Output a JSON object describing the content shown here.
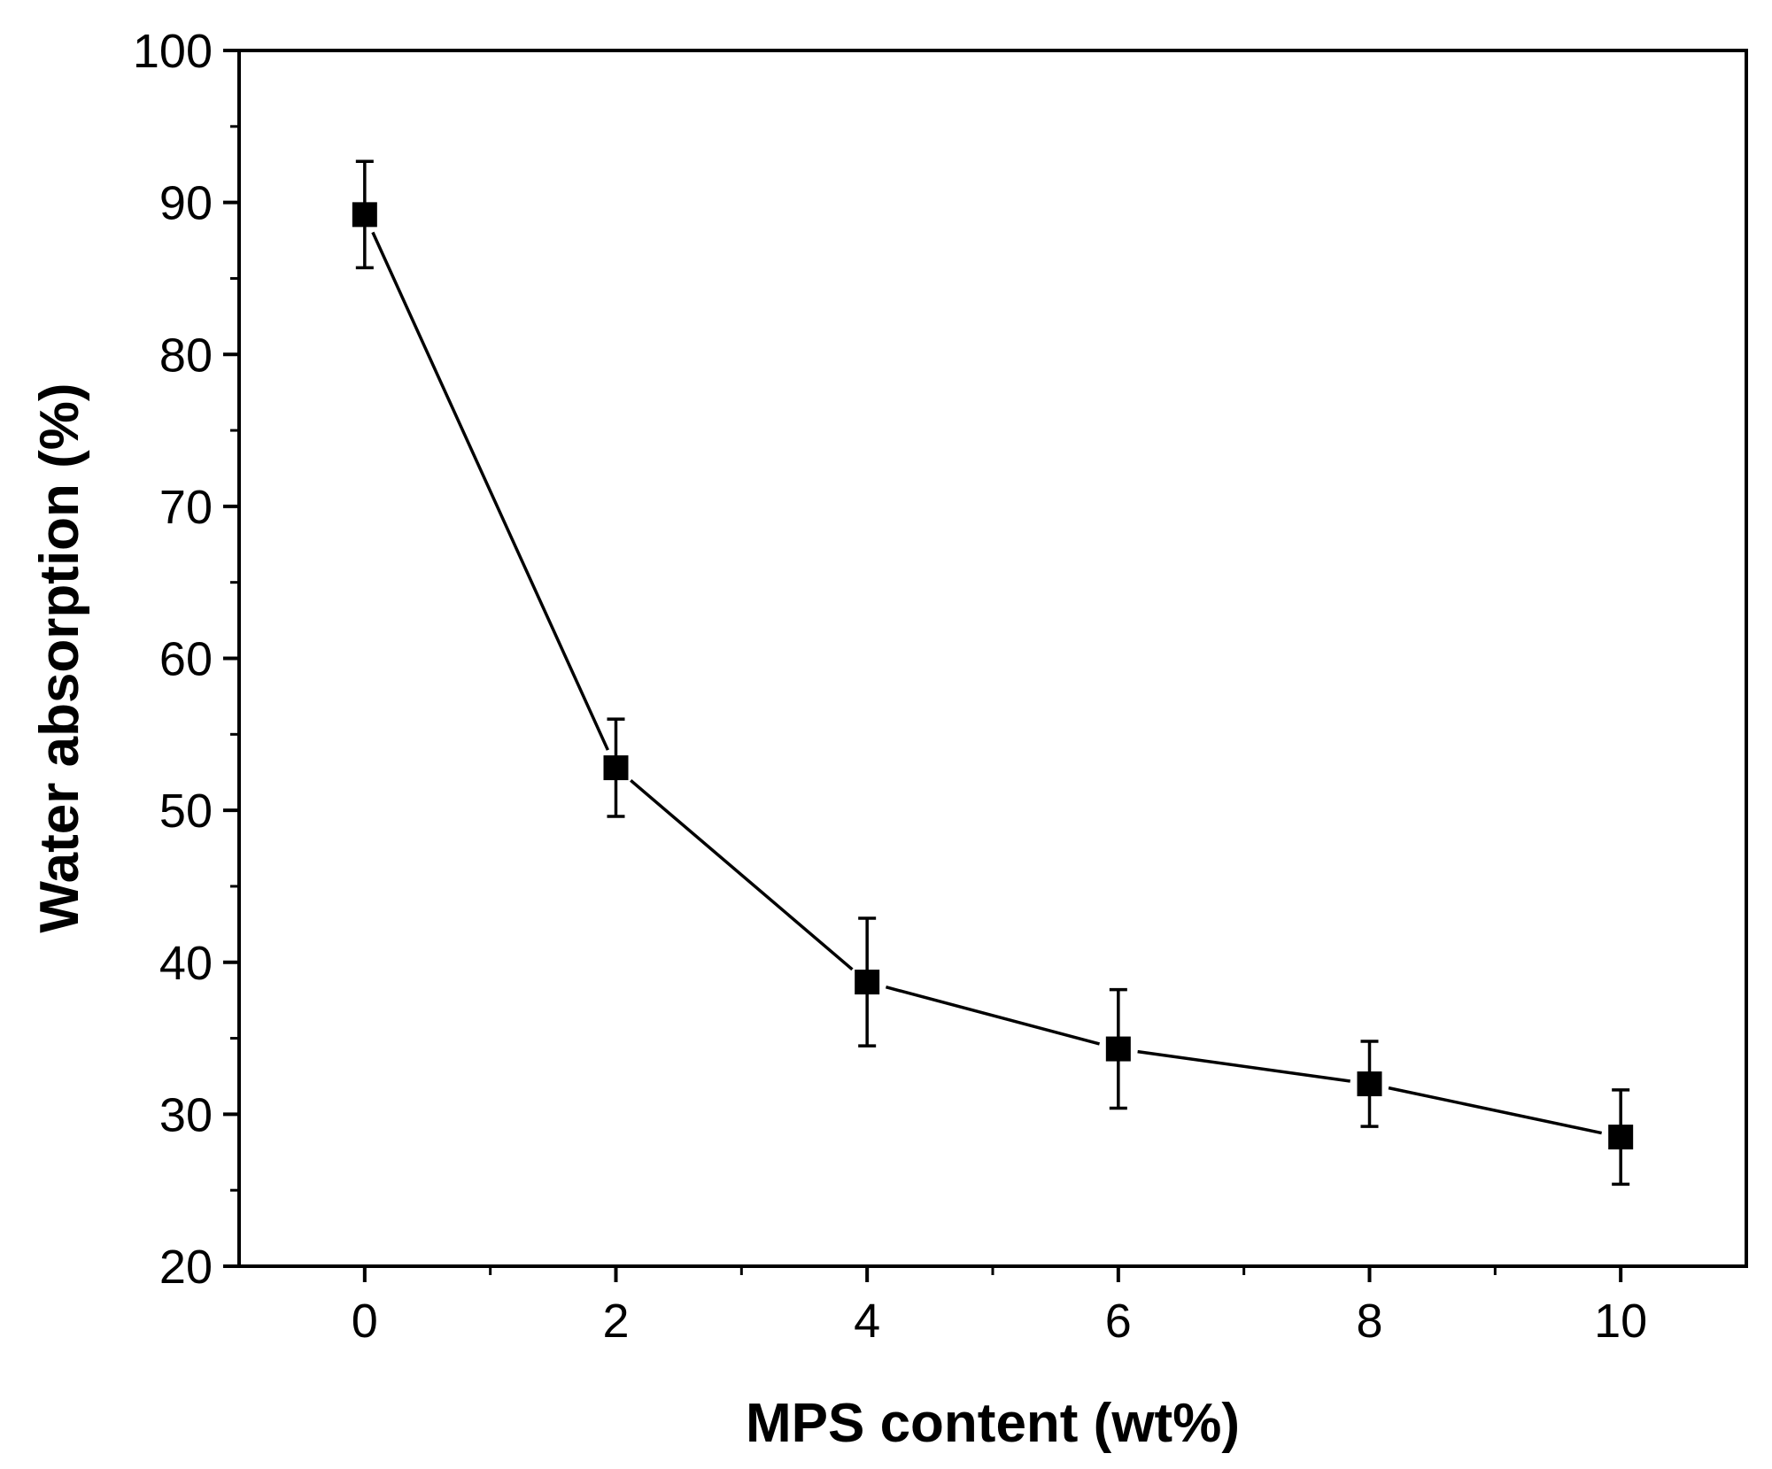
{
  "chart_data": {
    "type": "line",
    "title": "",
    "xlabel": "MPS content (wt%)",
    "ylabel": "Water absorption (%)",
    "xlim": [
      -1,
      11
    ],
    "ylim": [
      20,
      100
    ],
    "xticks": [
      0,
      2,
      4,
      6,
      8,
      10
    ],
    "yticks": [
      20,
      30,
      40,
      50,
      60,
      70,
      80,
      90,
      100
    ],
    "grid": false,
    "series": [
      {
        "name": "Water absorption",
        "marker": "square",
        "color": "#000000",
        "x": [
          0,
          2,
          4,
          6,
          8,
          10
        ],
        "y": [
          89.2,
          52.8,
          38.7,
          34.3,
          32.0,
          28.5
        ],
        "error": [
          3.5,
          3.2,
          4.2,
          3.9,
          2.8,
          3.1
        ]
      }
    ]
  }
}
